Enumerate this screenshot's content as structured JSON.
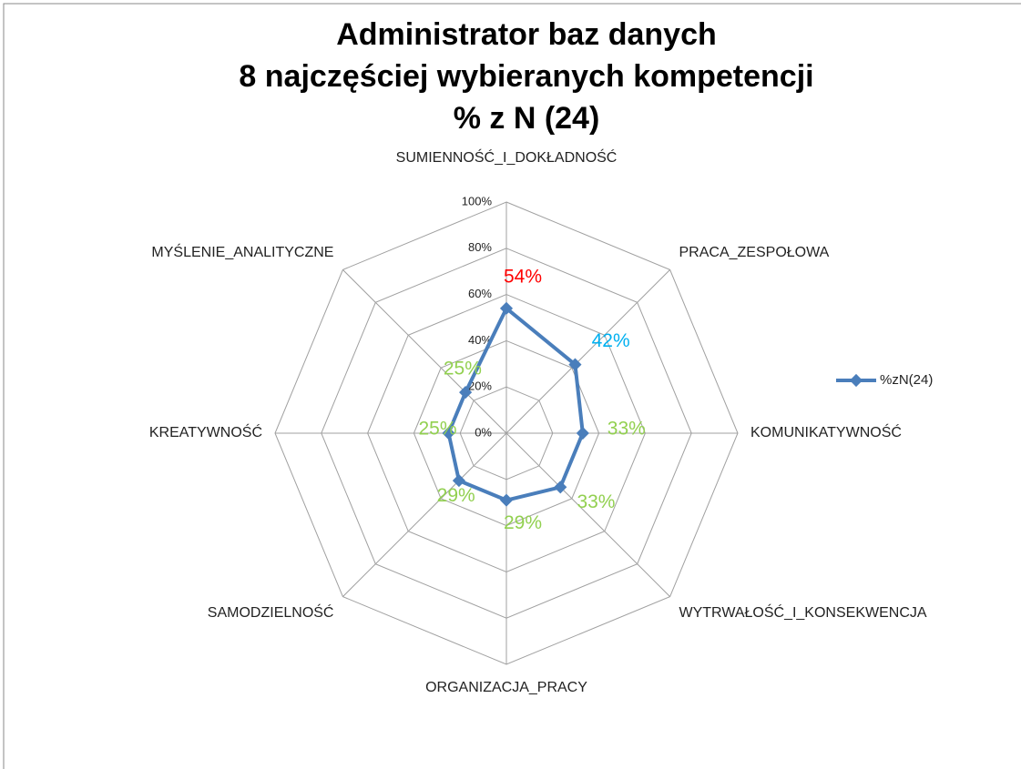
{
  "chart_data": {
    "type": "radar",
    "title": [
      "Administrator baz danych",
      "8 najczęściej wybieranych kompetencji",
      "% z N (24)"
    ],
    "categories": [
      "SUMIENNOŚĆ_I_DOKŁADNOŚĆ",
      "PRACA_ZESPOŁOWA",
      "KOMUNIKATYWNOŚĆ",
      "WYTRWAŁOŚĆ_I_KONSEKWENCJA",
      "ORGANIZACJA_PRACY",
      "SAMODZIELNOŚĆ",
      "KREATYWNOŚĆ",
      "MYŚLENIE_ANALITYCZNE"
    ],
    "series": [
      {
        "name": "%zN(24)",
        "color": "#4a7ebb",
        "values": [
          54,
          42,
          33,
          33,
          29,
          29,
          25,
          25
        ],
        "value_labels": [
          "54%",
          "42%",
          "33%",
          "33%",
          "29%",
          "29%",
          "25%",
          "25%"
        ],
        "value_label_colors": [
          "#ff0000",
          "#00b0f0",
          "#92d050",
          "#92d050",
          "#92d050",
          "#92d050",
          "#92d050",
          "#92d050"
        ]
      }
    ],
    "ylim": [
      0,
      100
    ],
    "yticks": [
      {
        "value": 0,
        "label": "0%"
      },
      {
        "value": 20,
        "label": "20%"
      },
      {
        "value": 40,
        "label": "40%"
      },
      {
        "value": 60,
        "label": "60%"
      },
      {
        "value": 80,
        "label": "80%"
      },
      {
        "value": 100,
        "label": "100%"
      }
    ],
    "grid": true,
    "legend": "right"
  }
}
